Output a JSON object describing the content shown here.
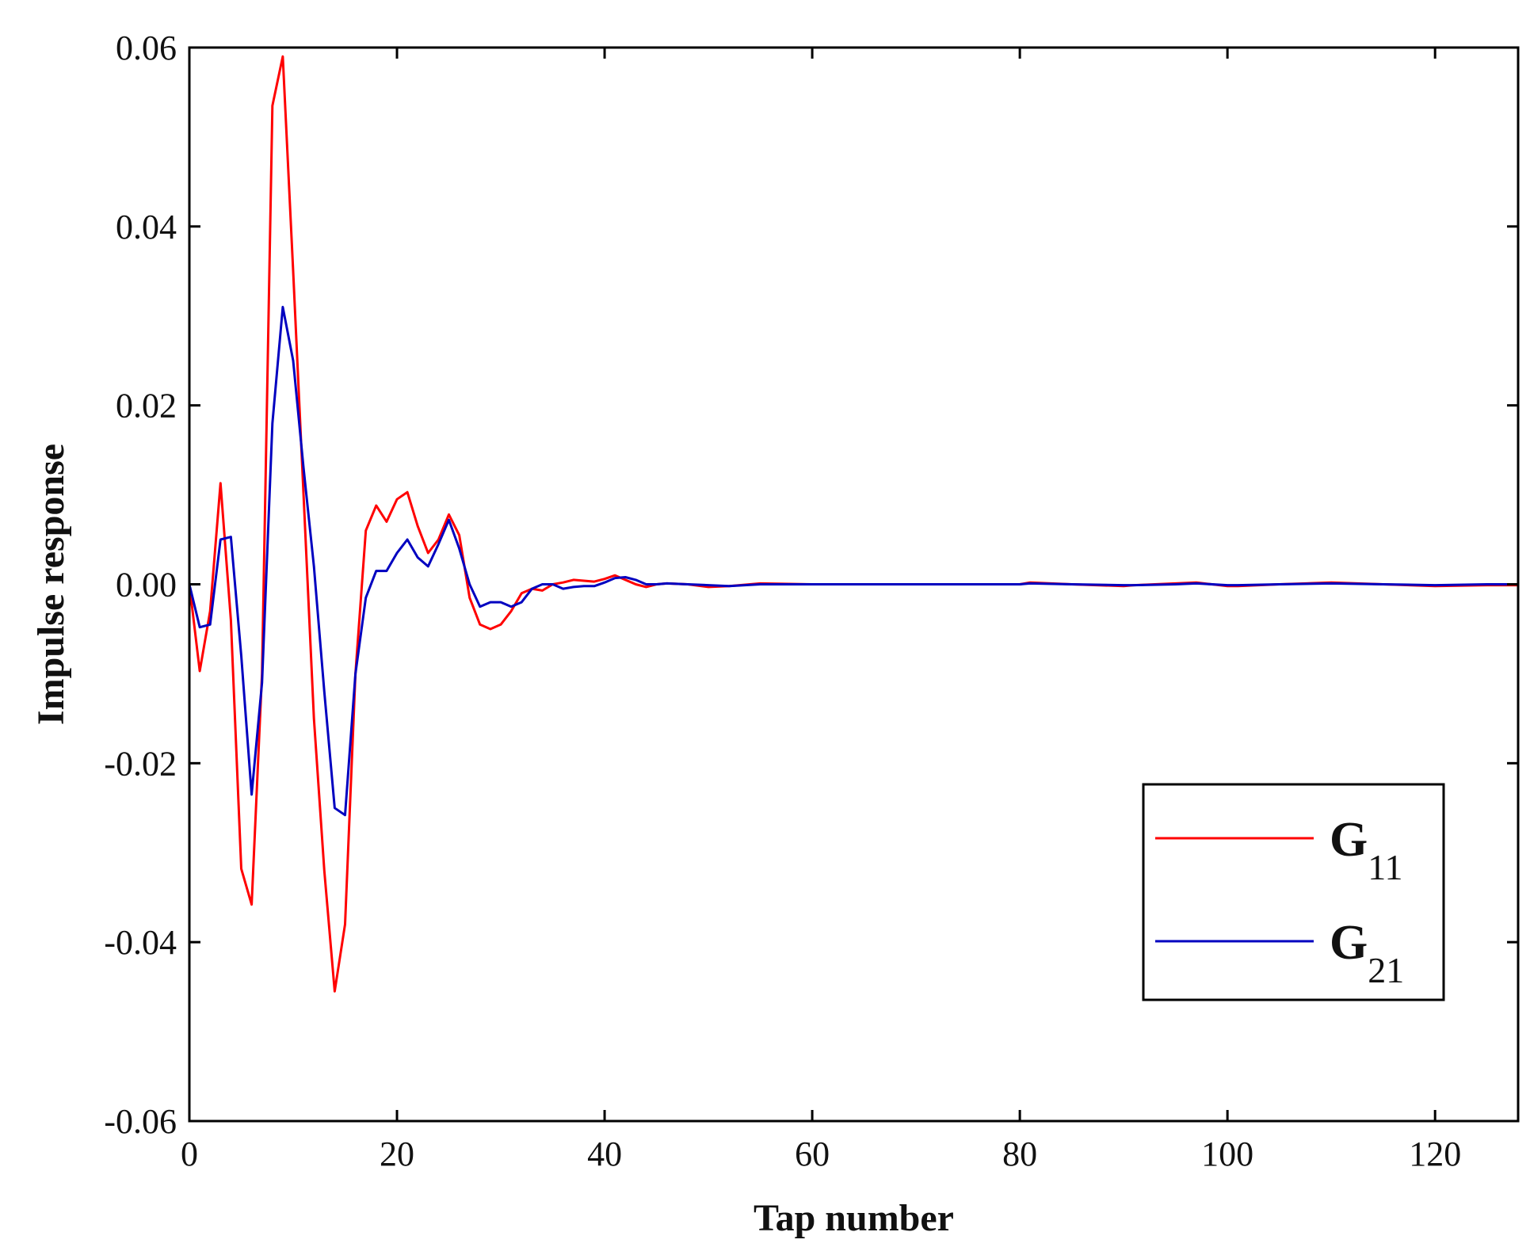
{
  "chart_data": {
    "type": "line",
    "xlabel": "Tap  number",
    "ylabel": "Impulse  response",
    "xlim": [
      0,
      128
    ],
    "ylim": [
      -0.06,
      0.06
    ],
    "xticks": [
      0,
      20,
      40,
      60,
      80,
      100,
      120
    ],
    "xtick_labels": [
      "0",
      "20",
      "40",
      "60",
      "80",
      "100",
      "120"
    ],
    "yticks": [
      -0.06,
      -0.04,
      -0.02,
      0.0,
      0.02,
      0.04,
      0.06
    ],
    "ytick_labels": [
      "-0.06",
      "-0.04",
      "-0.02",
      "0.00",
      "0.02",
      "0.04",
      "0.06"
    ],
    "grid": false,
    "legend_position": "right",
    "series": [
      {
        "name": "G11",
        "legend_main": "G",
        "legend_sub": "11",
        "color": "#ff0000",
        "x": [
          0,
          1,
          2,
          3,
          4,
          5,
          6,
          7,
          8,
          9,
          10,
          11,
          12,
          13,
          14,
          15,
          16,
          17,
          18,
          19,
          20,
          21,
          22,
          23,
          24,
          25,
          26,
          27,
          28,
          29,
          30,
          31,
          32,
          33,
          34,
          35,
          36,
          37,
          38,
          39,
          40,
          41,
          42,
          43,
          44,
          45,
          46,
          48,
          50,
          52,
          55,
          60,
          70,
          80,
          81,
          85,
          90,
          91,
          95,
          97,
          100,
          101,
          105,
          110,
          115,
          120,
          125,
          128
        ],
        "y": [
          0.0,
          -0.0097,
          -0.003,
          0.0113,
          -0.004,
          -0.0318,
          -0.0358,
          -0.01,
          0.0535,
          0.059,
          0.035,
          0.01,
          -0.015,
          -0.032,
          -0.0455,
          -0.038,
          -0.01,
          0.006,
          0.0088,
          0.007,
          0.0095,
          0.0103,
          0.0065,
          0.0035,
          0.005,
          0.0078,
          0.0055,
          -0.0015,
          -0.0045,
          -0.005,
          -0.0045,
          -0.003,
          -0.001,
          -0.0005,
          -0.0007,
          0.0,
          0.0002,
          0.0005,
          0.0004,
          0.0003,
          0.0006,
          0.001,
          0.0005,
          0.0,
          -0.0003,
          0.0,
          0.0001,
          0.0,
          -0.0003,
          -0.0002,
          0.0001,
          0.0,
          0.0,
          0.0,
          0.0002,
          0.0,
          -0.0002,
          -0.0001,
          0.0001,
          0.0002,
          -0.0002,
          -0.0002,
          0.0,
          0.0002,
          0.0,
          -0.0002,
          -0.0001,
          -0.0001
        ]
      },
      {
        "name": "G21",
        "legend_main": "G",
        "legend_sub": "21",
        "color": "#0000c0",
        "x": [
          0,
          1,
          2,
          3,
          4,
          5,
          6,
          7,
          8,
          9,
          10,
          11,
          12,
          13,
          14,
          15,
          16,
          17,
          18,
          19,
          20,
          21,
          22,
          23,
          24,
          25,
          26,
          27,
          28,
          29,
          30,
          31,
          32,
          33,
          34,
          35,
          36,
          37,
          38,
          39,
          40,
          41,
          42,
          43,
          44,
          45,
          46,
          48,
          50,
          52,
          55,
          60,
          70,
          80,
          81,
          85,
          90,
          91,
          95,
          97,
          100,
          101,
          105,
          110,
          115,
          120,
          125,
          128
        ],
        "y": [
          0.0,
          -0.0048,
          -0.0045,
          0.005,
          0.0053,
          -0.008,
          -0.0235,
          -0.011,
          0.018,
          0.031,
          0.025,
          0.013,
          0.002,
          -0.012,
          -0.025,
          -0.0258,
          -0.01,
          -0.0015,
          0.0015,
          0.0015,
          0.0035,
          0.005,
          0.003,
          0.002,
          0.0045,
          0.0072,
          0.004,
          0.0,
          -0.0025,
          -0.002,
          -0.002,
          -0.0025,
          -0.002,
          -0.0005,
          0.0,
          0.0,
          -0.0005,
          -0.0003,
          -0.0002,
          -0.0002,
          0.0002,
          0.0007,
          0.0008,
          0.0005,
          0.0,
          0.0,
          0.0001,
          0.0,
          -0.0001,
          -0.0002,
          0.0,
          0.0,
          0.0,
          0.0,
          0.0001,
          0.0,
          -0.0001,
          -0.0001,
          0.0,
          0.0001,
          -0.0001,
          -0.0001,
          0.0,
          0.0001,
          0.0,
          -0.0001,
          0.0,
          0.0
        ]
      }
    ]
  }
}
